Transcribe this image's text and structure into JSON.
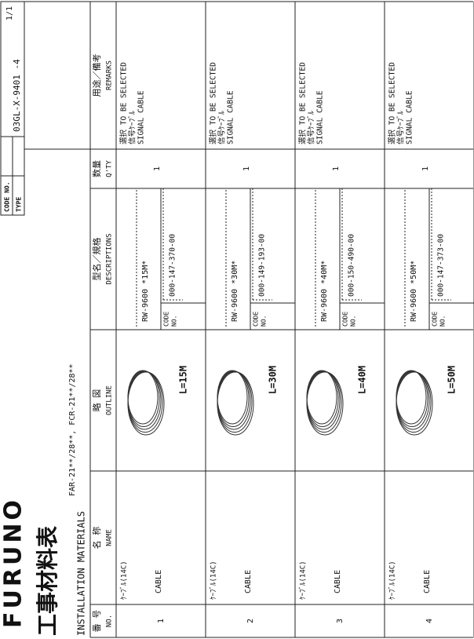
{
  "header": {
    "logo": "FURUNO",
    "code_no_label": "CODE NO.",
    "type_label": "TYPE",
    "code_no": "03GL-X-9401 -4",
    "page": "1/1"
  },
  "title": {
    "ja": "工事材料表",
    "en": "INSTALLATION MATERIALS",
    "models": "FAR-21**/28**, FCR-21**/28**"
  },
  "table": {
    "headers": [
      {
        "ja": "番 号",
        "en": "NO."
      },
      {
        "ja": "名  称",
        "en": "NAME"
      },
      {
        "ja": "略  図",
        "en": "OUTLINE"
      },
      {
        "ja": "型名／規格",
        "en": "DESCRIPTIONS"
      },
      {
        "ja": "数量",
        "en": "Q'TY"
      },
      {
        "ja": "用途／備考",
        "en": "REMARKS"
      }
    ],
    "rows": [
      {
        "no": "1",
        "name_ja": "ｹｰﾌﾞﾙ(14C)",
        "name_en": "CABLE",
        "outline": "L=15M",
        "type": "RW-9600  *15M*",
        "code_label": [
          "CODE",
          "NO."
        ],
        "code": "000-147-370-00",
        "qty": "1",
        "remarks": [
          "選択  TO BE SELECTED",
          "信号ｹｰﾌﾞﾙ",
          "SIGNAL CABLE"
        ]
      },
      {
        "no": "2",
        "name_ja": "ｹｰﾌﾞﾙ(14C)",
        "name_en": "CABLE",
        "outline": "L=30M",
        "type": "RW-9600  *30M*",
        "code_label": [
          "CODE",
          "NO."
        ],
        "code": "000-149-193-00",
        "qty": "1",
        "remarks": [
          "選択  TO BE SELECTED",
          "信号ｹｰﾌﾞﾙ",
          "SIGNAL CABLE"
        ]
      },
      {
        "no": "3",
        "name_ja": "ｹｰﾌﾞﾙ(14C)",
        "name_en": "CABLE",
        "outline": "L=40M",
        "type": "RW-9600  *40M*",
        "code_label": [
          "CODE",
          "NO."
        ],
        "code": "000-150-490-00",
        "qty": "1",
        "remarks": [
          "選択  TO BE SELECTED",
          "信号ｹｰﾌﾞﾙ",
          "SIGNAL CABLE"
        ]
      },
      {
        "no": "4",
        "name_ja": "ｹｰﾌﾞﾙ(14C)",
        "name_en": "CABLE",
        "outline": "L=50M",
        "type": "RW-9600  *50M*",
        "code_label": [
          "CODE",
          "NO."
        ],
        "code": "000-147-373-00",
        "qty": "1",
        "remarks": [
          "選択  TO BE SELECTED",
          "信号ｹｰﾌﾞﾙ",
          "SIGNAL CABLE"
        ]
      }
    ]
  }
}
